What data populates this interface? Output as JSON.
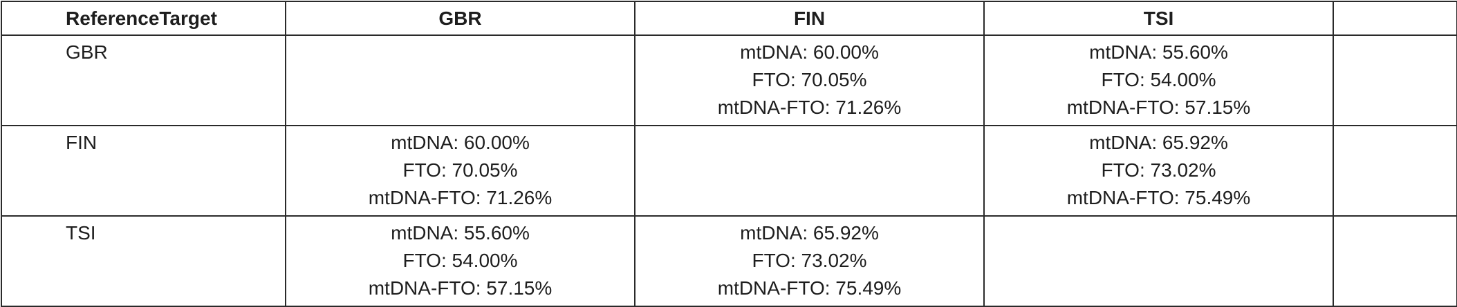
{
  "table": {
    "headers": [
      "ReferenceTarget",
      "GBR",
      "FIN",
      "TSI",
      ""
    ],
    "rows": [
      {
        "label": "GBR",
        "cells": [
          [],
          [
            "mtDNA: 60.00%",
            "FTO: 70.05%",
            "mtDNA-FTO: 71.26%"
          ],
          [
            "mtDNA: 55.60%",
            "FTO: 54.00%",
            "mtDNA-FTO: 57.15%"
          ],
          []
        ]
      },
      {
        "label": "FIN",
        "cells": [
          [
            "mtDNA: 60.00%",
            "FTO: 70.05%",
            "mtDNA-FTO: 71.26%"
          ],
          [],
          [
            "mtDNA: 65.92%",
            "FTO: 73.02%",
            "mtDNA-FTO: 75.49%"
          ],
          []
        ]
      },
      {
        "label": "TSI",
        "cells": [
          [
            "mtDNA: 55.60%",
            "FTO: 54.00%",
            "mtDNA-FTO: 57.15%"
          ],
          [
            "mtDNA: 65.92%",
            "FTO: 73.02%",
            "mtDNA-FTO: 75.49%"
          ],
          [],
          []
        ]
      }
    ]
  }
}
